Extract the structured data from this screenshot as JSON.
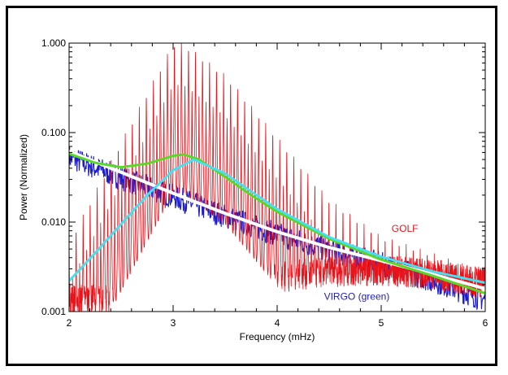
{
  "colors": {
    "golf": "#e8141c",
    "virgo": "#1c1cc8",
    "fit_green": "#58d828",
    "fit_cyan": "#48e0f0",
    "fit_white": "#ffffff"
  },
  "chart_data": {
    "type": "line",
    "title": "",
    "xlabel": "Frequency (mHz)",
    "ylabel": "Power (Normalized)",
    "xlim": [
      2,
      6
    ],
    "ylim": [
      0.001,
      1.0
    ],
    "yscale": "log",
    "xticks": [
      "2",
      "3",
      "4",
      "5",
      "6"
    ],
    "yticks": [
      "0.001",
      "0.010",
      "0.100",
      "1.000"
    ],
    "grid": false,
    "annotations": [
      {
        "text": "GOLF",
        "color": "#e8141c",
        "x": 5.1,
        "y": 0.0078
      },
      {
        "text": "VIRGO (green)",
        "color": "#1c1cc8",
        "x": 4.45,
        "y": 0.00135
      }
    ],
    "series": [
      {
        "name": "GOLF",
        "style": "spectrum",
        "color": "#e8141c",
        "x": [
          2.0,
          2.5,
          3.0,
          3.1,
          3.5,
          4.0,
          4.5,
          5.0,
          5.5,
          6.0
        ],
        "background": [
          0.0014,
          0.0013,
          0.0015,
          0.0016,
          0.0019,
          0.0024,
          0.0028,
          0.0029,
          0.0026,
          0.0021
        ],
        "peak_envelope": [
          0.006,
          0.08,
          1.0,
          1.0,
          0.45,
          0.09,
          0.018,
          0.007,
          0.0045,
          0.0028
        ]
      },
      {
        "name": "VIRGO",
        "style": "spectrum",
        "color": "#1c1cc8",
        "x": [
          2.0,
          2.5,
          3.0,
          3.5,
          4.0,
          4.5,
          5.0,
          5.5,
          6.0
        ],
        "background": [
          0.055,
          0.032,
          0.02,
          0.012,
          0.0075,
          0.005,
          0.0035,
          0.0023,
          0.0014
        ]
      },
      {
        "name": "VIRGO fit",
        "style": "fit",
        "color": "#58d828",
        "x": [
          2.0,
          2.25,
          2.5,
          2.75,
          3.0,
          3.1,
          3.25,
          3.5,
          3.75,
          4.0,
          4.5,
          5.0,
          5.5,
          6.0
        ],
        "y": [
          0.058,
          0.046,
          0.041,
          0.045,
          0.055,
          0.057,
          0.05,
          0.032,
          0.02,
          0.013,
          0.0065,
          0.0038,
          0.0025,
          0.0016
        ]
      },
      {
        "name": "GOLF fit",
        "style": "fit",
        "color": "#48e0f0",
        "x": [
          2.0,
          2.25,
          2.5,
          2.75,
          3.0,
          3.2,
          3.5,
          3.75,
          4.0,
          4.5,
          5.0,
          5.5,
          6.0
        ],
        "y": [
          0.0022,
          0.0045,
          0.0095,
          0.02,
          0.038,
          0.05,
          0.035,
          0.022,
          0.014,
          0.0068,
          0.0041,
          0.0028,
          0.0021
        ]
      },
      {
        "name": "background fit",
        "style": "fit",
        "color": "#ffffff",
        "x": [
          2.0,
          2.5,
          3.0,
          3.5,
          4.0,
          4.5,
          5.0,
          5.5,
          6.0
        ],
        "y": [
          0.062,
          0.036,
          0.021,
          0.0125,
          0.0078,
          0.0052,
          0.0037,
          0.0026,
          0.0018
        ]
      }
    ]
  }
}
